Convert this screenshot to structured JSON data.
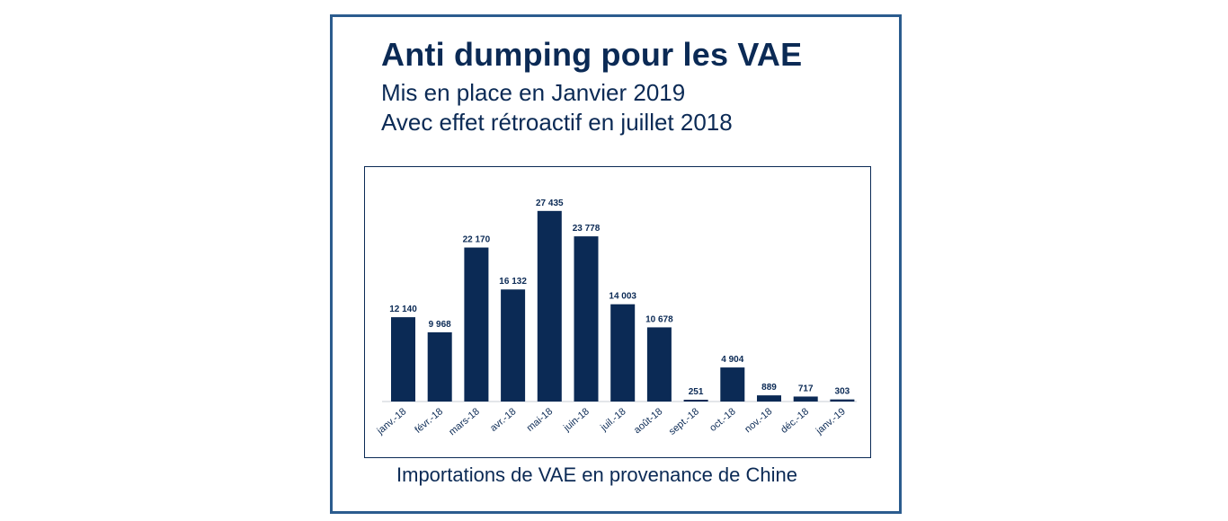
{
  "header": {
    "title": "Anti dumping pour les VAE",
    "subtitle_1": "Mis en place en Janvier 2019",
    "subtitle_2": "Avec effet rétroactif en juillet 2018"
  },
  "colors": {
    "bar": "#0b2a55",
    "frame": "#2b5c8e",
    "text": "#0b2a55"
  },
  "chart_data": {
    "type": "bar",
    "title": "",
    "xlabel": "Importations de VAE en provenance de Chine",
    "ylabel": "",
    "ylim": [
      0,
      30000
    ],
    "grid": false,
    "categories": [
      "janv.-18",
      "févr.-18",
      "mars-18",
      "avr.-18",
      "mai-18",
      "juin-18",
      "juil.-18",
      "août-18",
      "sept.-18",
      "oct.-18",
      "nov.-18",
      "déc.-18",
      "janv.-19"
    ],
    "values": [
      12140,
      9968,
      22170,
      16132,
      27435,
      23778,
      14003,
      10678,
      251,
      4904,
      889,
      717,
      303
    ],
    "value_labels": [
      "12 140",
      "9 968",
      "22 170",
      "16 132",
      "27 435",
      "23 778",
      "14 003",
      "10 678",
      "251",
      "4 904",
      "889",
      "717",
      "303"
    ]
  }
}
